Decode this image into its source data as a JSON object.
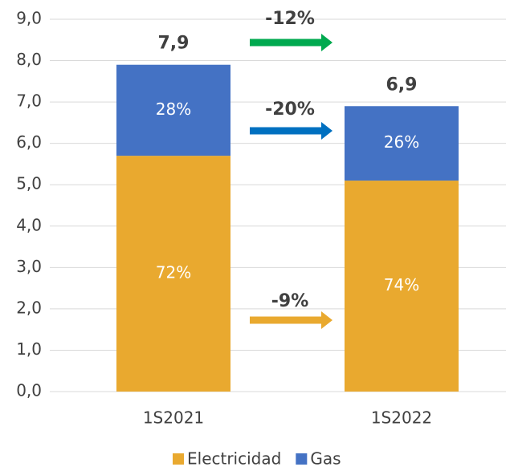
{
  "chart_data": {
    "type": "stacked_bar",
    "categories": [
      "1S2021",
      "1S2022"
    ],
    "series": [
      {
        "name": "Electricidad",
        "color": "#e9a92f",
        "values": [
          5.7,
          5.1
        ],
        "value_labels": [
          "72%",
          "74%"
        ]
      },
      {
        "name": "Gas",
        "color": "#4472c4",
        "values": [
          2.2,
          1.8
        ],
        "value_labels": [
          "28%",
          "26%"
        ]
      }
    ],
    "totals": [
      7.9,
      6.9
    ],
    "total_labels": [
      "7,9",
      "6,9"
    ],
    "annotations": [
      {
        "text": "-12%",
        "color": "#00a94f"
      },
      {
        "text": "-20%",
        "color": "#0070c0"
      },
      {
        "text": "-9%",
        "color": "#e9a92f"
      }
    ],
    "ylim": [
      0,
      9
    ],
    "yticks": [
      {
        "value": 0,
        "label": "0,0"
      },
      {
        "value": 1,
        "label": "1,0"
      },
      {
        "value": 2,
        "label": "2,0"
      },
      {
        "value": 3,
        "label": "3,0"
      },
      {
        "value": 4,
        "label": "4,0"
      },
      {
        "value": 5,
        "label": "5,0"
      },
      {
        "value": 6,
        "label": "6,0"
      },
      {
        "value": 7,
        "label": "7,0"
      },
      {
        "value": 8,
        "label": "8,0"
      },
      {
        "value": 9,
        "label": "9,0"
      }
    ],
    "grid": true,
    "legend": "bottom"
  }
}
